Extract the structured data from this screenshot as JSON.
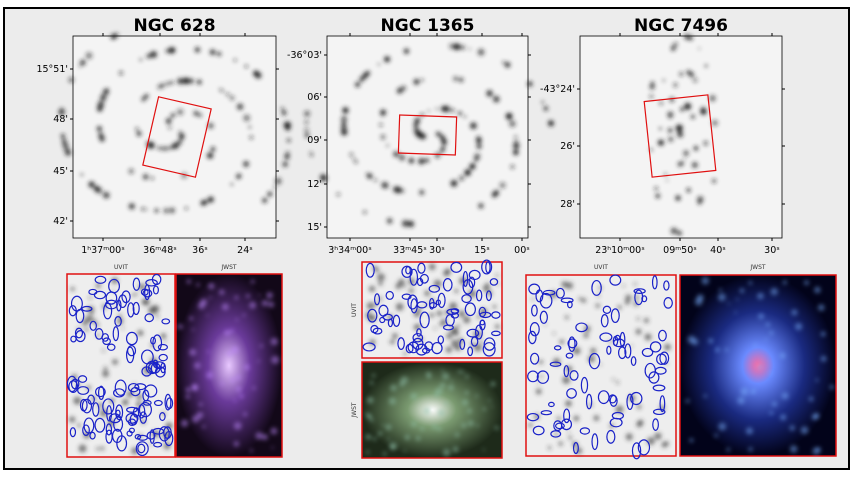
{
  "panels": [
    {
      "title": "NGC 628",
      "yticks": [
        "15°51'",
        "48'",
        "45'",
        "42'"
      ],
      "xticks": [
        "1ʰ37ᵐ00ˢ",
        "36ᵐ48ˢ",
        "36ˢ",
        "24ˢ"
      ]
    },
    {
      "title": "NGC 1365",
      "yticks": [
        "-36°03'",
        "06'",
        "09'",
        "12'",
        "15'"
      ],
      "xticks": [
        "3ʰ34ᵐ00ˢ",
        "33ᵐ45ˢ",
        "30ˢ",
        "15ˢ",
        "00ˢ"
      ]
    },
    {
      "title": "NGC 7496",
      "yticks": [
        "-43°24'",
        "26'",
        "28'"
      ],
      "xticks": [
        "23ʰ10ᵐ00ˢ",
        "09ᵐ50ˢ",
        "40ˢ",
        "30ˢ"
      ]
    }
  ],
  "insets": [
    {
      "uvit": "UVIT",
      "jwst": "JWST"
    },
    {
      "uvit": "UVIT",
      "jwst": "JWST"
    },
    {
      "uvit": "UVIT",
      "jwst": "JWST"
    }
  ]
}
